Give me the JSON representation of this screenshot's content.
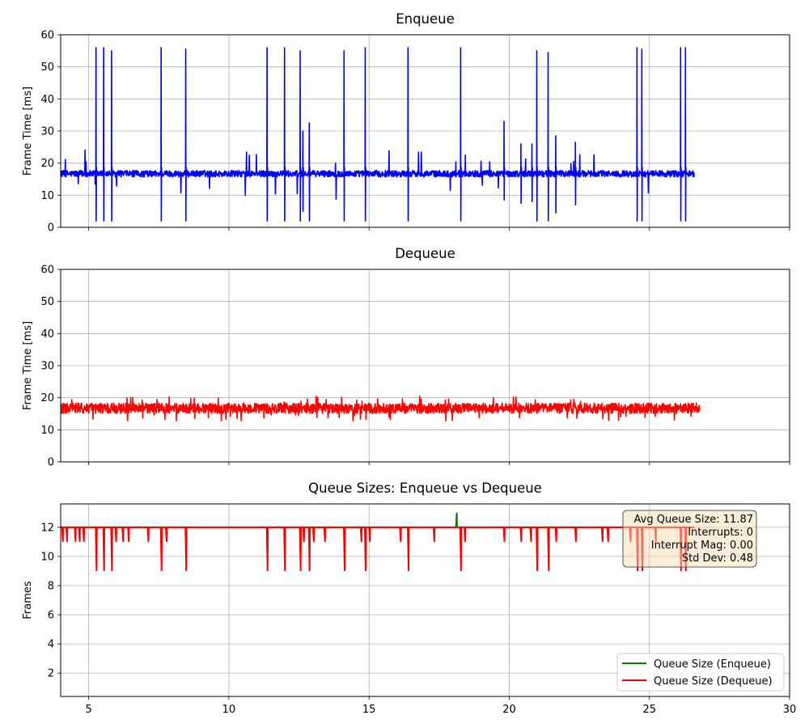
{
  "chart_data": [
    {
      "type": "line",
      "title": "Enqueue",
      "xlabel": "",
      "ylabel": "Frame Time [ms]",
      "xlim": [
        4,
        30
      ],
      "ylim": [
        0,
        60
      ],
      "x_ticks": [
        5,
        10,
        15,
        20,
        25,
        30
      ],
      "y_ticks": [
        0,
        10,
        20,
        30,
        40,
        50,
        60
      ],
      "grid": true,
      "x_start": 4.0,
      "x_end": 26.6,
      "baseline": 16.7,
      "noise": 1.0,
      "spikes": [
        {
          "x": 5.25,
          "high": 56,
          "low": 2
        },
        {
          "x": 5.52,
          "high": 56,
          "low": 2
        },
        {
          "x": 5.8,
          "high": 55,
          "low": 2
        },
        {
          "x": 7.57,
          "high": 56,
          "low": 2
        },
        {
          "x": 8.45,
          "high": 55.5,
          "low": 2
        },
        {
          "x": 11.35,
          "high": 56,
          "low": 2
        },
        {
          "x": 11.97,
          "high": 56,
          "low": 2
        },
        {
          "x": 12.53,
          "high": 55,
          "low": 2
        },
        {
          "x": 12.63,
          "high": 30,
          "low": 5
        },
        {
          "x": 12.85,
          "high": 32.5,
          "low": 2
        },
        {
          "x": 14.1,
          "high": 55,
          "low": 2
        },
        {
          "x": 14.85,
          "high": 56,
          "low": 2
        },
        {
          "x": 16.38,
          "high": 56,
          "low": 2
        },
        {
          "x": 18.25,
          "high": 56,
          "low": 2
        },
        {
          "x": 19.8,
          "high": 33,
          "low": 8.5
        },
        {
          "x": 20.4,
          "high": 26,
          "low": 7.5
        },
        {
          "x": 20.8,
          "high": 26,
          "low": 8
        },
        {
          "x": 20.97,
          "high": 55,
          "low": 2
        },
        {
          "x": 21.38,
          "high": 54.5,
          "low": 2
        },
        {
          "x": 21.65,
          "high": 28.5,
          "low": 4.5
        },
        {
          "x": 22.35,
          "high": 26.5,
          "low": 7
        },
        {
          "x": 24.55,
          "high": 56,
          "low": 2
        },
        {
          "x": 24.72,
          "high": 55.5,
          "low": 2
        },
        {
          "x": 26.1,
          "high": 56,
          "low": 2
        },
        {
          "x": 26.27,
          "high": 56,
          "low": 2
        }
      ],
      "series": [
        {
          "color": "#0000ff"
        }
      ]
    },
    {
      "type": "line",
      "title": "Dequeue",
      "xlabel": "",
      "ylabel": "Frame Time [ms]",
      "xlim": [
        4,
        30
      ],
      "ylim": [
        0,
        60
      ],
      "x_ticks": [
        5,
        10,
        15,
        20,
        25,
        30
      ],
      "y_ticks": [
        0,
        10,
        20,
        30,
        40,
        50,
        60
      ],
      "grid": true,
      "x_start": 4.0,
      "x_end": 26.8,
      "baseline": 16.7,
      "noise": 1.6,
      "series": [
        {
          "color": "#ff0000"
        }
      ]
    },
    {
      "type": "line",
      "title": "Queue Sizes: Enqueue vs Dequeue",
      "xlabel": "",
      "ylabel": "Frames",
      "xlim": [
        4,
        30
      ],
      "ylim": [
        0.4,
        13.6
      ],
      "x_ticks": [
        5,
        10,
        15,
        20,
        25,
        30
      ],
      "x_tick_labels": [
        "5",
        "10",
        "15",
        "20",
        "25",
        "30"
      ],
      "y_ticks": [
        2,
        4,
        6,
        8,
        10,
        12
      ],
      "grid": true,
      "legend_position": "lower-right",
      "series": [
        {
          "name": "Queue Size (Enqueue)",
          "color": "#008000",
          "x_start": 4.0,
          "x_end": 26.6,
          "baseline": 12,
          "spikes": [
            {
              "x": 18.1,
              "value": 13
            }
          ]
        },
        {
          "name": "Queue Size (Dequeue)",
          "color": "#ff0000",
          "x_start": 4.0,
          "x_end": 26.6,
          "baseline": 12,
          "dips": [
            {
              "x": 4.05,
              "value": 11
            },
            {
              "x": 4.2,
              "value": 11
            },
            {
              "x": 4.5,
              "value": 11
            },
            {
              "x": 4.65,
              "value": 11
            },
            {
              "x": 4.8,
              "value": 11
            },
            {
              "x": 5.25,
              "value": 9
            },
            {
              "x": 5.52,
              "value": 9
            },
            {
              "x": 5.8,
              "value": 9
            },
            {
              "x": 5.95,
              "value": 11
            },
            {
              "x": 6.2,
              "value": 11
            },
            {
              "x": 6.4,
              "value": 11
            },
            {
              "x": 7.1,
              "value": 11
            },
            {
              "x": 7.57,
              "value": 9
            },
            {
              "x": 7.75,
              "value": 11
            },
            {
              "x": 8.45,
              "value": 9
            },
            {
              "x": 11.35,
              "value": 9
            },
            {
              "x": 11.97,
              "value": 9
            },
            {
              "x": 12.53,
              "value": 9
            },
            {
              "x": 12.65,
              "value": 11
            },
            {
              "x": 12.85,
              "value": 9
            },
            {
              "x": 13.0,
              "value": 11
            },
            {
              "x": 13.4,
              "value": 11
            },
            {
              "x": 14.1,
              "value": 9
            },
            {
              "x": 14.7,
              "value": 11
            },
            {
              "x": 14.85,
              "value": 9
            },
            {
              "x": 15.0,
              "value": 11
            },
            {
              "x": 16.1,
              "value": 11
            },
            {
              "x": 16.38,
              "value": 9
            },
            {
              "x": 17.3,
              "value": 11
            },
            {
              "x": 18.25,
              "value": 9
            },
            {
              "x": 18.4,
              "value": 11
            },
            {
              "x": 19.8,
              "value": 11
            },
            {
              "x": 20.4,
              "value": 11
            },
            {
              "x": 20.75,
              "value": 11
            },
            {
              "x": 20.97,
              "value": 9
            },
            {
              "x": 21.38,
              "value": 9
            },
            {
              "x": 21.65,
              "value": 11
            },
            {
              "x": 22.35,
              "value": 11
            },
            {
              "x": 23.3,
              "value": 11
            },
            {
              "x": 23.5,
              "value": 11
            },
            {
              "x": 24.3,
              "value": 11
            },
            {
              "x": 24.55,
              "value": 9
            },
            {
              "x": 24.72,
              "value": 9
            },
            {
              "x": 25.2,
              "value": 11
            },
            {
              "x": 26.1,
              "value": 9
            },
            {
              "x": 26.27,
              "value": 9
            }
          ]
        }
      ],
      "stats": {
        "avg_queue_size": "Avg Queue Size: 11.87",
        "interrupts": "Interrupts: 0",
        "interrupt_mag": "Interrupt Mag: 0.00",
        "std_dev": "Std Dev: 0.48"
      }
    }
  ]
}
